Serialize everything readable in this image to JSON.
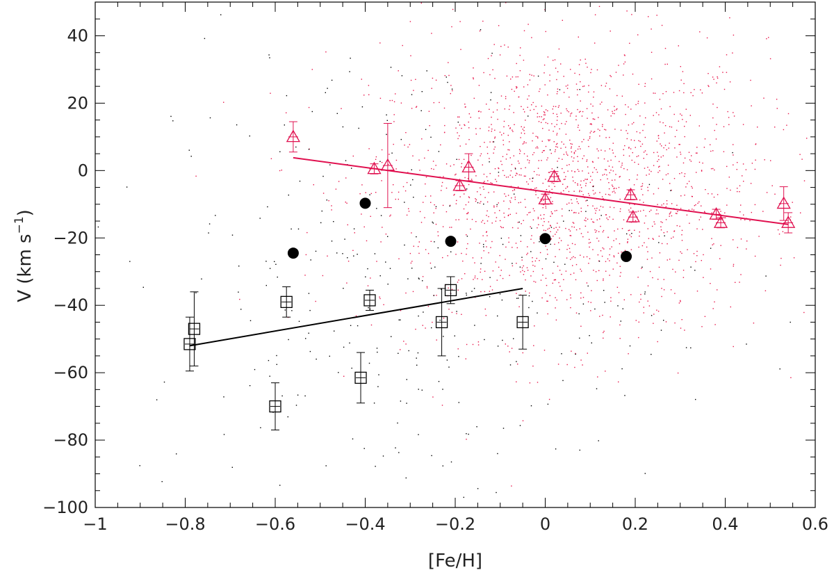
{
  "chart_data": {
    "type": "scatter",
    "title": "",
    "xlabel": "[Fe/H]",
    "ylabel": "V (km s",
    "ylabel_sup": "−1",
    "ylabel_close": ")",
    "xlim": [
      -1.0,
      0.6
    ],
    "ylim": [
      -100,
      50
    ],
    "x_ticks": [
      -1,
      -0.8,
      -0.6,
      -0.4,
      -0.2,
      0,
      0.2,
      0.4,
      0.6
    ],
    "x_tick_labels": [
      "−1",
      "−0.8",
      "−0.6",
      "−0.4",
      "−0.2",
      "0",
      "0.2",
      "0.4",
      "0.6"
    ],
    "y_ticks": [
      -100,
      -80,
      -60,
      -40,
      -20,
      0,
      20,
      40
    ],
    "y_tick_labels": [
      "−100",
      "−80",
      "−60",
      "−40",
      "−20",
      "0",
      "20",
      "40"
    ],
    "grid": false,
    "colors": {
      "red": "#e0104f",
      "black": "#000000",
      "red_points": "#e8154a"
    },
    "series": [
      {
        "marker": "triangle",
        "color": "#e0104f",
        "points": [
          {
            "x": -0.56,
            "y": 10.0,
            "yerr": 4.5
          },
          {
            "x": -0.38,
            "y": 0.5,
            "yerr": 1.5
          },
          {
            "x": -0.35,
            "y": 1.5,
            "yerr": 12.5
          },
          {
            "x": -0.19,
            "y": -4.5,
            "yerr": 1.5
          },
          {
            "x": -0.17,
            "y": 1.0,
            "yerr": 4.0
          },
          {
            "x": 0.0,
            "y": -8.5,
            "yerr": 1.5
          },
          {
            "x": 0.02,
            "y": -1.8,
            "yerr": 1.5
          },
          {
            "x": 0.19,
            "y": -7.2,
            "yerr": 1.5
          },
          {
            "x": 0.195,
            "y": -13.8,
            "yerr": 1.5
          },
          {
            "x": 0.38,
            "y": -13.0,
            "yerr": 1.5
          },
          {
            "x": 0.39,
            "y": -15.5,
            "yerr": 1.5
          },
          {
            "x": 0.53,
            "y": -9.8,
            "yerr": 5.0
          },
          {
            "x": 0.54,
            "y": -15.5,
            "yerr": 3.0
          }
        ],
        "fit": {
          "x": [
            -0.56,
            0.54
          ],
          "y": [
            3.8,
            -16.0
          ]
        }
      },
      {
        "marker": "square",
        "color": "#000000",
        "points": [
          {
            "x": -0.79,
            "y": -51.5,
            "yerr": 8.0
          },
          {
            "x": -0.78,
            "y": -47.0,
            "yerr": 11.0
          },
          {
            "x": -0.6,
            "y": -70.0,
            "yerr": 7.0
          },
          {
            "x": -0.575,
            "y": -39.0,
            "yerr": 4.5
          },
          {
            "x": -0.41,
            "y": -61.5,
            "yerr": 7.5
          },
          {
            "x": -0.39,
            "y": -38.5,
            "yerr": 3.0
          },
          {
            "x": -0.23,
            "y": -45.0,
            "yerr": 10.0
          },
          {
            "x": -0.21,
            "y": -35.5,
            "yerr": 4.0
          },
          {
            "x": -0.05,
            "y": -45.0,
            "yerr": 8.0
          }
        ],
        "fit": {
          "x": [
            -0.79,
            -0.05
          ],
          "y": [
            -52.0,
            -35.0
          ]
        }
      },
      {
        "marker": "filled-circle",
        "color": "#000000",
        "points": [
          {
            "x": -0.56,
            "y": -24.5
          },
          {
            "x": -0.4,
            "y": -9.7
          },
          {
            "x": -0.21,
            "y": -21.0
          },
          {
            "x": 0.0,
            "y": -20.2
          },
          {
            "x": 0.18,
            "y": -25.5
          }
        ]
      }
    ],
    "background_points": {
      "red": {
        "count": 1800,
        "x_center": 0.05,
        "y_center": -5,
        "x_sigma": 0.22,
        "y_sigma": 22
      },
      "black": {
        "count": 360,
        "x_center": -0.3,
        "y_center": -30,
        "x_sigma": 0.3,
        "y_sigma": 35
      }
    }
  }
}
